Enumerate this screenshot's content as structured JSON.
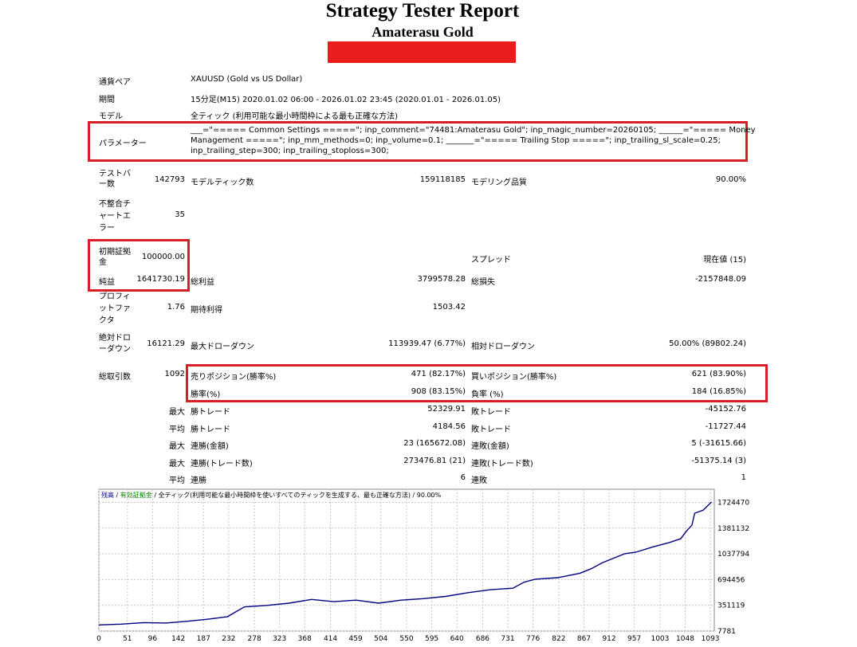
{
  "header": {
    "title": "Strategy Tester Report",
    "subtitle": "Amaterasu Gold"
  },
  "info": {
    "symbol_label": "通貨ペア",
    "symbol_value": "XAUUSD (Gold vs US Dollar)",
    "period_label": "期間",
    "period_value": "15分足(M15) 2020.01.02 06:00 - 2026.01.02 23:45 (2020.01.01 - 2026.01.05)",
    "model_label": "モデル",
    "model_value": "全ティック (利用可能な最小時間枠による最も正確な方法)",
    "params_label": "パラメーター",
    "params_line1": "___=\"===== Common Settings =====\"; inp_comment=\"74481:Amaterasu Gold\"; inp_magic_number=20260105; ______=\"===== Money",
    "params_line2": "Management =====\"; inp_mm_methods=0; inp_volume=0.1; _______=\"===== Trailing Stop =====\"; inp_trailing_sl_scale=0.25;",
    "params_line3": "inp_trailing_step=300; inp_trailing_stoploss=300;"
  },
  "stats": {
    "bars_label_1": "テストバ",
    "bars_label_2": "ー数",
    "bars_value": "142793",
    "ticks_label": "モデルティック数",
    "ticks_value": "159118185",
    "quality_label": "モデリング品質",
    "quality_value": "90.00%",
    "mismatch_label_1": "不整合チ",
    "mismatch_label_2": "ャートエ",
    "mismatch_label_3": "ラー",
    "mismatch_value": "35",
    "deposit_label_1": "初期証拠",
    "deposit_label_2": "金",
    "deposit_value": "100000.00",
    "spread_label": "スプレッド",
    "spread_value": "現在値 (15)",
    "netprofit_label": "純益",
    "netprofit_value": "1641730.19",
    "grossprofit_label": "総利益",
    "grossprofit_value": "3799578.28",
    "grossloss_label": "総損失",
    "grossloss_value": "-2157848.09",
    "pf_label_1": "プロフィ",
    "pf_label_2": "ットファ",
    "pf_label_3": "クタ",
    "pf_value": "1.76",
    "expected_label": "期待利得",
    "expected_value": "1503.42",
    "absdd_label_1": "絶対ドロ",
    "absdd_label_2": "ーダウン",
    "absdd_value": "16121.29",
    "maxdd_label": "最大ドローダウン",
    "maxdd_value": "113939.47 (6.77%)",
    "reldd_label": "相対ドローダウン",
    "reldd_value": "50.00% (89802.24)",
    "trades_label": "総取引数",
    "trades_value": "1092",
    "short_label": "売りポジション(勝率%)",
    "short_value": "471 (82.17%)",
    "long_label": "買いポジション(勝率%)",
    "long_value": "621 (83.90%)",
    "winrate_label": "勝率(%)",
    "winrate_value": "908 (83.15%)",
    "lossrate_label": "負率 (%)",
    "lossrate_value": "184 (16.85%)",
    "row_max_1": "最大",
    "largest_win_label": "勝トレード",
    "largest_win_value": "52329.91",
    "largest_loss_label": "敗トレード",
    "largest_loss_value": "-45152.76",
    "row_avg_1": "平均",
    "avg_win_label": "勝トレード",
    "avg_win_value": "4184.56",
    "avg_loss_label": "敗トレード",
    "avg_loss_value": "-11727.44",
    "row_max_2": "最大",
    "consec_win_amt_label": "連勝(金額)",
    "consec_win_amt_value": "23 (165672.08)",
    "consec_loss_amt_label": "連敗(金額)",
    "consec_loss_amt_value": "5 (-31615.66)",
    "row_max_3": "最大",
    "consec_win_cnt_label": "連勝(トレード数)",
    "consec_win_cnt_value": "273476.81 (21)",
    "consec_loss_cnt_label": "連敗(トレード数)",
    "consec_loss_cnt_value": "-51375.14 (3)",
    "row_avg_2": "平均",
    "avg_consec_win_label": "連勝",
    "avg_consec_win_value": "6",
    "avg_consec_loss_label": "連敗",
    "avg_consec_loss_value": "1"
  },
  "chart_data": {
    "type": "line",
    "legend": [
      {
        "text": "残高",
        "color": "#000080"
      },
      {
        "text": " / ",
        "color": "#000000"
      },
      {
        "text": "有効証拠金",
        "color": "#008000"
      },
      {
        "text": " / 全ティック(利用可能な最小時間枠を使いすべてのティックを生成する、最も正確な方法) / 90.00%",
        "color": "#000000"
      }
    ],
    "x_ticks": [
      0,
      51,
      96,
      142,
      187,
      232,
      278,
      323,
      368,
      414,
      459,
      504,
      550,
      595,
      640,
      686,
      731,
      776,
      822,
      867,
      912,
      957,
      1003,
      1048,
      1093
    ],
    "y_ticks": [
      7781,
      351119,
      694456,
      1037794,
      1381132,
      1724470
    ],
    "xlim": [
      0,
      1100
    ],
    "ylim": [
      7781,
      1900000
    ],
    "series": [
      {
        "color": "#000080",
        "x": [
          0,
          40,
          80,
          120,
          160,
          200,
          230,
          260,
          300,
          340,
          380,
          420,
          460,
          500,
          540,
          580,
          620,
          660,
          700,
          740,
          760,
          780,
          820,
          860,
          880,
          900,
          940,
          960,
          990,
          1020,
          1040,
          1050,
          1060,
          1065,
          1080,
          1095
        ],
        "y": [
          90000,
          100000,
          120000,
          115000,
          140000,
          170000,
          200000,
          330000,
          350000,
          380000,
          430000,
          400000,
          420000,
          380000,
          420000,
          440000,
          470000,
          520000,
          560000,
          580000,
          660000,
          700000,
          720000,
          780000,
          840000,
          920000,
          1040000,
          1060000,
          1130000,
          1190000,
          1240000,
          1340000,
          1420000,
          1580000,
          1620000,
          1730000
        ]
      }
    ]
  }
}
